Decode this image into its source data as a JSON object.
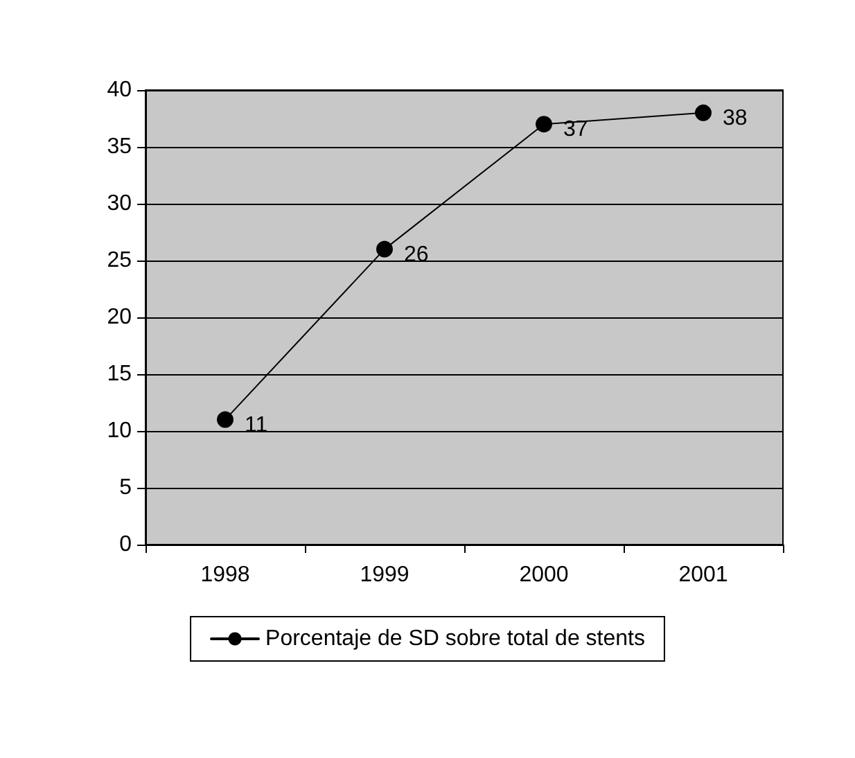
{
  "chart_data": {
    "type": "line",
    "categories": [
      "1998",
      "1999",
      "2000",
      "2001"
    ],
    "series": [
      {
        "name": "Porcentaje de SD sobre total de stents",
        "color": "#000000",
        "values": [
          11,
          26,
          37,
          38
        ]
      }
    ],
    "ylim": [
      0,
      40
    ],
    "yticks": [
      0,
      5,
      10,
      15,
      20,
      25,
      30,
      35,
      40
    ],
    "grid": "y",
    "legend": "bottom",
    "marker": "circle",
    "line_style": "solid",
    "data_labels": true
  }
}
